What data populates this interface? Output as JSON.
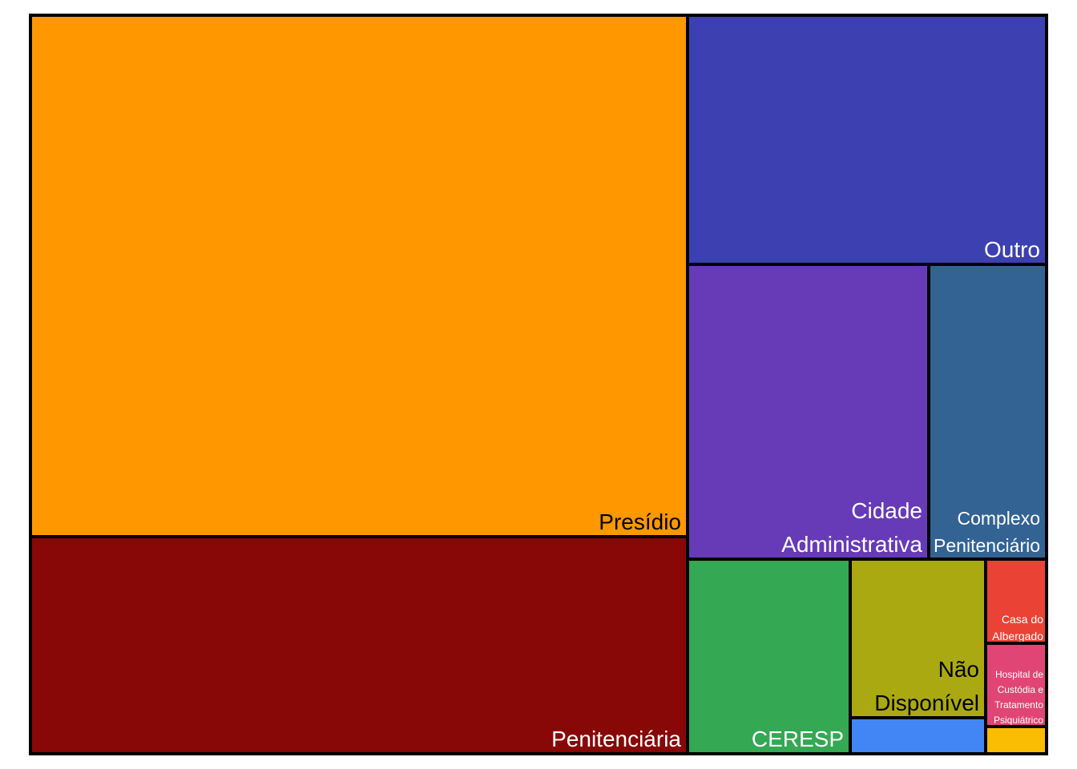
{
  "chart_data": {
    "type": "treemap",
    "items": [
      {
        "name": "Presídio",
        "label_lines": [
          "Presídio"
        ],
        "value": 533,
        "color": "#FF9800",
        "label_color": "#000000"
      },
      {
        "name": "Penitenciária",
        "label_lines": [
          "Penitenciária"
        ],
        "value": 221,
        "color": "#880707",
        "label_color": "#FFFFFF"
      },
      {
        "name": "Outro",
        "label_lines": [
          "Outro"
        ],
        "value": 137,
        "color": "#3C40B0",
        "label_color": "#FFFFFF"
      },
      {
        "name": "Cidade Administrativa",
        "label_lines": [
          "Cidade",
          "Administrativa"
        ],
        "value": 109,
        "color": "#673AB7",
        "label_color": "#FFFFFF"
      },
      {
        "name": "Complexo Penitenciário",
        "label_lines": [
          "Complexo",
          "Penitenciário"
        ],
        "value": 54,
        "color": "#336392",
        "label_color": "#FFFFFF"
      },
      {
        "name": "CERESP",
        "label_lines": [
          "CERESP"
        ],
        "value": 48,
        "color": "#34A853",
        "label_color": "#FFFFFF"
      },
      {
        "name": "Não Disponível",
        "label_lines": [
          "Não",
          "Disponível"
        ],
        "value": 33,
        "color": "#AAA912",
        "label_color": "#000000"
      },
      {
        "name": "",
        "label_lines": [],
        "value": 8,
        "color": "#4285F4",
        "label_color": "#FFFFFF"
      },
      {
        "name": "Casa do Albergado",
        "label_lines": [
          "Casa do",
          "Albergado"
        ],
        "value": 7,
        "color": "#EA4335",
        "label_color": "#FFFFFF"
      },
      {
        "name": "Hospital de Custódia e Tratamento Psiquiátrico",
        "label_lines": [
          "Hospital de",
          "Custódia e",
          "Tratamento",
          "Psiquiátrico"
        ],
        "value": 7,
        "color": "#E04576",
        "label_color": "#FFFFFF"
      },
      {
        "name": "",
        "label_lines": [],
        "value": 2,
        "color": "#FBBC04",
        "label_color": "#000000"
      }
    ]
  }
}
